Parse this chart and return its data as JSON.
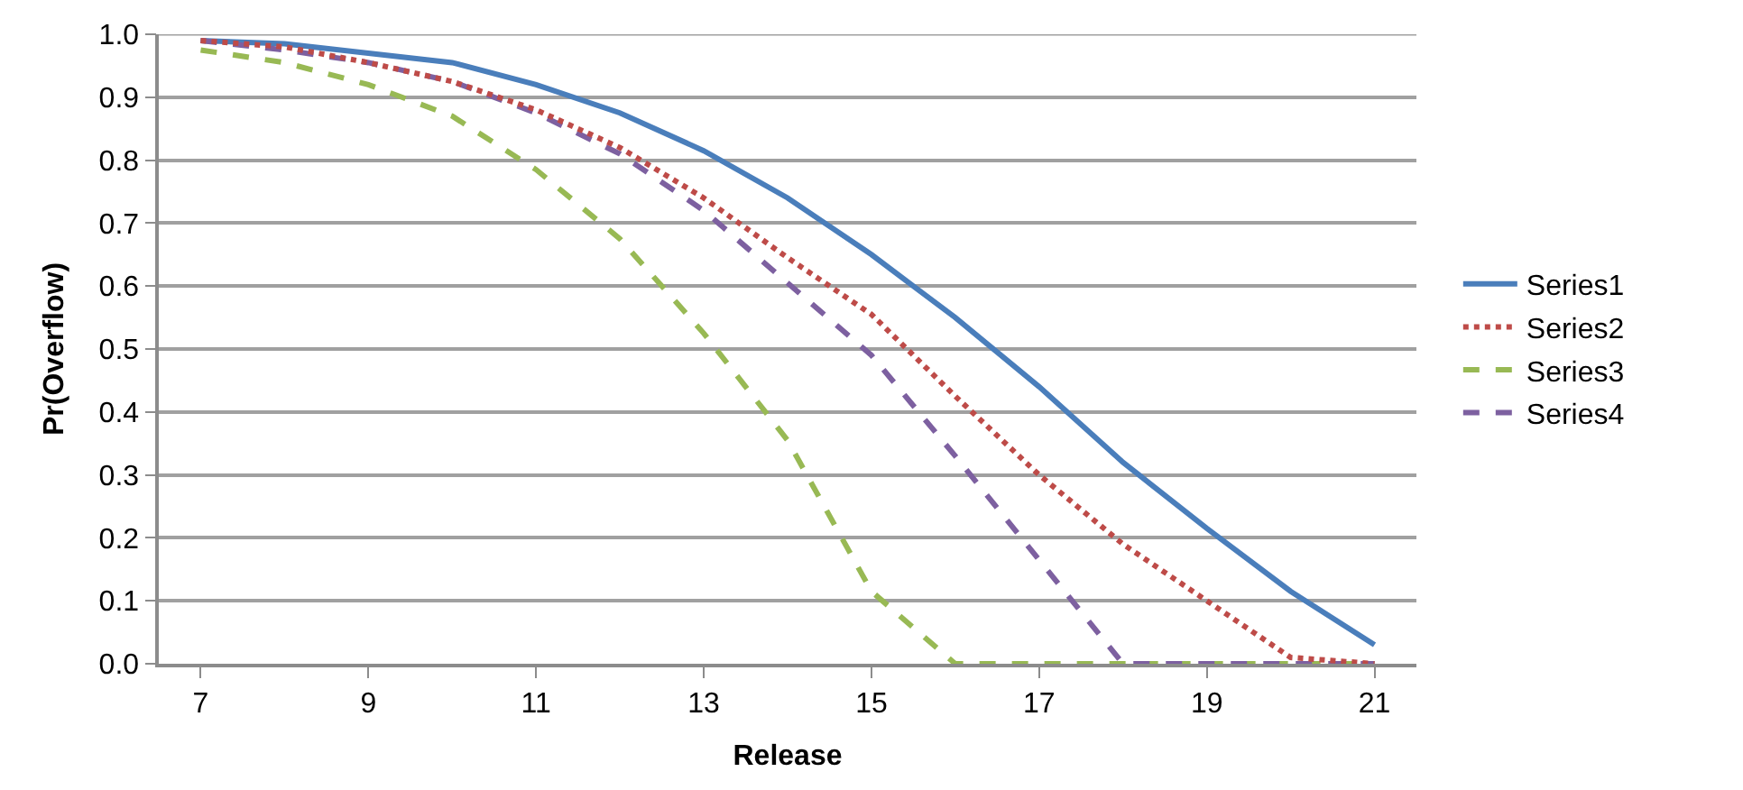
{
  "chart_data": {
    "type": "line",
    "xlabel": "Release",
    "ylabel": "Pr(Overflow)",
    "x": [
      7,
      8,
      9,
      10,
      11,
      12,
      13,
      14,
      15,
      16,
      17,
      18,
      19,
      20,
      21
    ],
    "xlim": [
      6.5,
      21.5
    ],
    "xticks": [
      7,
      9,
      11,
      13,
      15,
      17,
      19,
      21
    ],
    "ylim": [
      0,
      1
    ],
    "yticks": [
      {
        "value": 0,
        "label": "0.0"
      },
      {
        "value": 0.1,
        "label": "0.1"
      },
      {
        "value": 0.2,
        "label": "0.2"
      },
      {
        "value": 0.3,
        "label": "0.3"
      },
      {
        "value": 0.4,
        "label": "0.4"
      },
      {
        "value": 0.5,
        "label": "0.5"
      },
      {
        "value": 0.6,
        "label": "0.6"
      },
      {
        "value": 0.7,
        "label": "0.7"
      },
      {
        "value": 0.8,
        "label": "0.8"
      },
      {
        "value": 0.9,
        "label": "0.9"
      },
      {
        "value": 1,
        "label": "1.0"
      }
    ],
    "grid": "y",
    "legend": "right",
    "marker": "none",
    "series": [
      {
        "name": "Series1",
        "color": "#4a7ebb",
        "line_style": "solid",
        "values": [
          0.99,
          0.985,
          0.97,
          0.955,
          0.92,
          0.875,
          0.815,
          0.74,
          0.65,
          0.55,
          0.44,
          0.32,
          0.215,
          0.115,
          0.03
        ]
      },
      {
        "name": "Series2",
        "color": "#be4b48",
        "line_style": "dotted",
        "values": [
          0.99,
          0.98,
          0.955,
          0.925,
          0.88,
          0.82,
          0.74,
          0.645,
          0.555,
          0.425,
          0.3,
          0.19,
          0.1,
          0.01,
          0
        ]
      },
      {
        "name": "Series3",
        "color": "#98b954",
        "line_style": "dashed",
        "values": [
          0.975,
          0.955,
          0.92,
          0.87,
          0.785,
          0.675,
          0.525,
          0.355,
          0.115,
          0,
          0,
          0,
          0,
          0,
          0
        ]
      },
      {
        "name": "Series4",
        "color": "#7d60a0",
        "line_style": "dashed",
        "values": [
          0.99,
          0.975,
          0.955,
          0.925,
          0.875,
          0.81,
          0.72,
          0.605,
          0.49,
          0.33,
          0.165,
          0,
          0,
          0,
          0
        ]
      }
    ]
  }
}
